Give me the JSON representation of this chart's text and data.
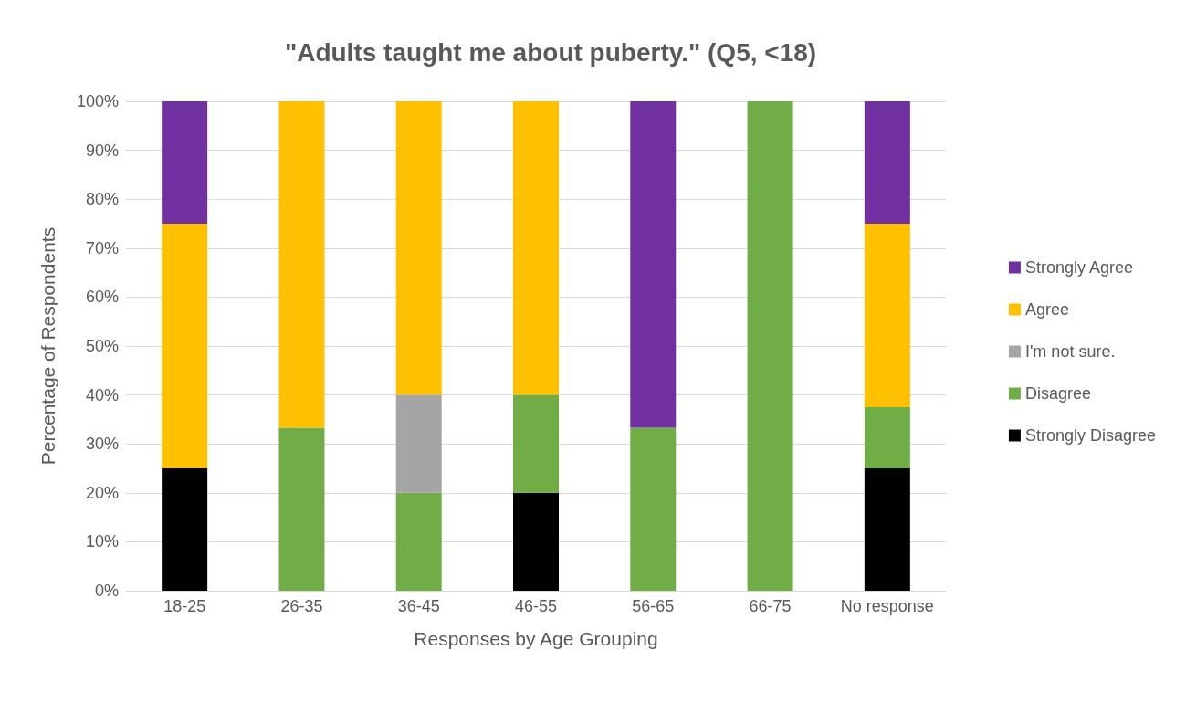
{
  "chart_data": {
    "type": "bar",
    "title": "\"Adults taught me about puberty.\" (Q5, <18)",
    "xlabel": "Responses by Age Grouping",
    "ylabel": "Percentage of Respondents",
    "categories": [
      "18-25",
      "26-35",
      "36-45",
      "46-55",
      "56-65",
      "66-75",
      "No response"
    ],
    "stacked": true,
    "ylim": [
      0,
      100
    ],
    "yticks": [
      {
        "value": 0,
        "label": "0%"
      },
      {
        "value": 10,
        "label": "10%"
      },
      {
        "value": 20,
        "label": "20%"
      },
      {
        "value": 30,
        "label": "30%"
      },
      {
        "value": 40,
        "label": "40%"
      },
      {
        "value": 50,
        "label": "50%"
      },
      {
        "value": 60,
        "label": "60%"
      },
      {
        "value": 70,
        "label": "70%"
      },
      {
        "value": 80,
        "label": "80%"
      },
      {
        "value": 90,
        "label": "90%"
      },
      {
        "value": 100,
        "label": "100%"
      }
    ],
    "grid": "y",
    "legend": "right",
    "series": [
      {
        "name": "Strongly Disagree",
        "color": "#000000",
        "values": [
          25,
          0,
          0,
          20,
          0,
          0,
          25
        ]
      },
      {
        "name": "Disagree",
        "color": "#70ad47",
        "values": [
          0,
          33.3,
          20,
          20,
          33.3,
          100,
          12.5
        ]
      },
      {
        "name": "I'm not sure.",
        "color": "#a5a5a5",
        "values": [
          0,
          0,
          20,
          0,
          0,
          0,
          0
        ]
      },
      {
        "name": "Agree",
        "color": "#ffc000",
        "values": [
          50,
          66.7,
          60,
          60,
          0,
          0,
          37.5
        ]
      },
      {
        "name": "Strongly Agree",
        "color": "#7030a0",
        "values": [
          25,
          0,
          0,
          0,
          66.7,
          0,
          25
        ]
      }
    ]
  }
}
